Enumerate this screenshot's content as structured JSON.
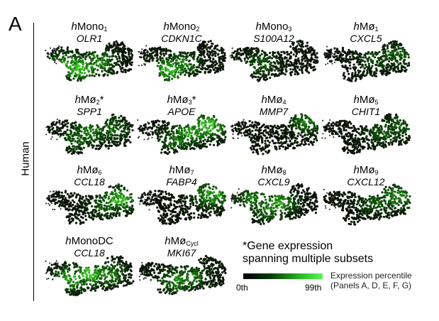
{
  "panel_letter": "A",
  "species_label": "Human",
  "panels": [
    {
      "prefix": "h",
      "name": "Mono",
      "sub": "1",
      "suffix": "",
      "gene": "OLR1",
      "hot": [
        [
          0.4,
          0.65,
          0.95
        ],
        [
          0.25,
          0.55,
          0.7
        ],
        [
          0.6,
          0.5,
          0.6
        ]
      ]
    },
    {
      "prefix": "h",
      "name": "Mono",
      "sub": "2",
      "suffix": "",
      "gene": "CDKN1C",
      "hot": [
        [
          0.35,
          0.7,
          0.8
        ],
        [
          0.5,
          0.55,
          0.5
        ]
      ]
    },
    {
      "prefix": "h",
      "name": "Mono",
      "sub": "3",
      "suffix": "",
      "gene": "S100A12",
      "hot": [
        [
          0.35,
          0.55,
          0.35
        ]
      ]
    },
    {
      "prefix": "h",
      "name": "Mø",
      "sub": "1",
      "suffix": "",
      "gene": "CXCL5",
      "hot": [
        [
          0.85,
          0.35,
          0.4
        ],
        [
          0.6,
          0.45,
          0.3
        ]
      ]
    },
    {
      "prefix": "h",
      "name": "Mø",
      "sub": "2",
      "suffix": "*",
      "gene": "SPP1",
      "hot": [
        [
          0.5,
          0.45,
          0.55
        ],
        [
          0.75,
          0.35,
          0.45
        ],
        [
          0.35,
          0.6,
          0.4
        ]
      ]
    },
    {
      "prefix": "h",
      "name": "Mø",
      "sub": "3",
      "suffix": "*",
      "gene": "APOE",
      "hot": [
        [
          0.8,
          0.3,
          0.95
        ],
        [
          0.6,
          0.45,
          0.75
        ],
        [
          0.45,
          0.6,
          0.5
        ]
      ]
    },
    {
      "prefix": "h",
      "name": "Mø",
      "sub": "4",
      "suffix": "",
      "gene": "MMP7",
      "hot": [
        [
          0.88,
          0.2,
          0.5
        ]
      ]
    },
    {
      "prefix": "h",
      "name": "Mø",
      "sub": "5",
      "suffix": "",
      "gene": "CHIT1",
      "hot": [
        [
          0.7,
          0.45,
          0.35
        ],
        [
          0.9,
          0.3,
          0.35
        ]
      ]
    },
    {
      "prefix": "h",
      "name": "Mø",
      "sub": "6",
      "suffix": "",
      "gene": "CCL18",
      "hot": [
        [
          0.85,
          0.35,
          0.9
        ],
        [
          0.7,
          0.5,
          0.4
        ]
      ]
    },
    {
      "prefix": "h",
      "name": "Mø",
      "sub": "7",
      "suffix": "",
      "gene": "FABP4",
      "hot": [
        [
          0.85,
          0.25,
          0.8
        ]
      ]
    },
    {
      "prefix": "h",
      "name": "Mø",
      "sub": "8",
      "suffix": "",
      "gene": "CXCL9",
      "hot": [
        [
          0.55,
          0.45,
          0.7
        ],
        [
          0.3,
          0.35,
          0.6
        ],
        [
          0.45,
          0.6,
          0.5
        ]
      ]
    },
    {
      "prefix": "h",
      "name": "Mø",
      "sub": "9",
      "suffix": "",
      "gene": "CXCL12",
      "hot": [
        [
          0.85,
          0.3,
          0.6
        ],
        [
          0.6,
          0.45,
          0.35
        ]
      ]
    },
    {
      "prefix": "h",
      "name": "MonoDC",
      "sub": "",
      "suffix": "",
      "gene": "CCL18",
      "hot": [
        [
          0.5,
          0.45,
          0.9
        ],
        [
          0.3,
          0.55,
          0.8
        ],
        [
          0.7,
          0.45,
          0.6
        ]
      ]
    },
    {
      "prefix": "h",
      "name": "Mø",
      "sub": "Cycl",
      "suffix": "",
      "gene": "MKI67",
      "hot": [
        [
          0.45,
          0.6,
          0.6
        ],
        [
          0.6,
          0.5,
          0.5
        ]
      ]
    }
  ],
  "note_line1": "*Gene expression",
  "note_line2": "spanning multiple subsets",
  "colorbar": {
    "low_label": "0th",
    "high_label": "99th",
    "low_color": "#000000",
    "high_color": "#5cf55c"
  },
  "legend_line1": "Expression percentile",
  "legend_line2": "(Panels A, D, E, F, G)"
}
